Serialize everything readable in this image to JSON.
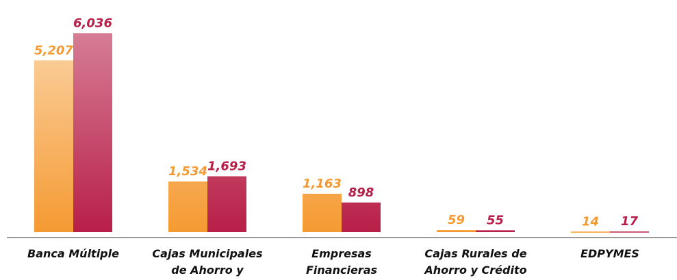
{
  "chart_data": {
    "type": "bar",
    "categories": [
      "Banca Múltiple",
      "Cajas Municipales de Ahorro y Crédito",
      "Empresas Financieras",
      "Cajas Rurales de Ahorro y Crédito",
      "EDPYMES"
    ],
    "series": [
      {
        "color": "#f59a32",
        "values": [
          5207,
          1534,
          1163,
          59,
          14
        ],
        "value_labels": [
          "5,207",
          "1,534",
          "1,163",
          "59",
          "14"
        ]
      },
      {
        "color": "#b81f48",
        "values": [
          6036,
          1693,
          898,
          55,
          17
        ],
        "value_labels": [
          "6,036",
          "1,693",
          "898",
          "55",
          "17"
        ]
      }
    ],
    "ylim": [
      0,
      6500
    ]
  }
}
